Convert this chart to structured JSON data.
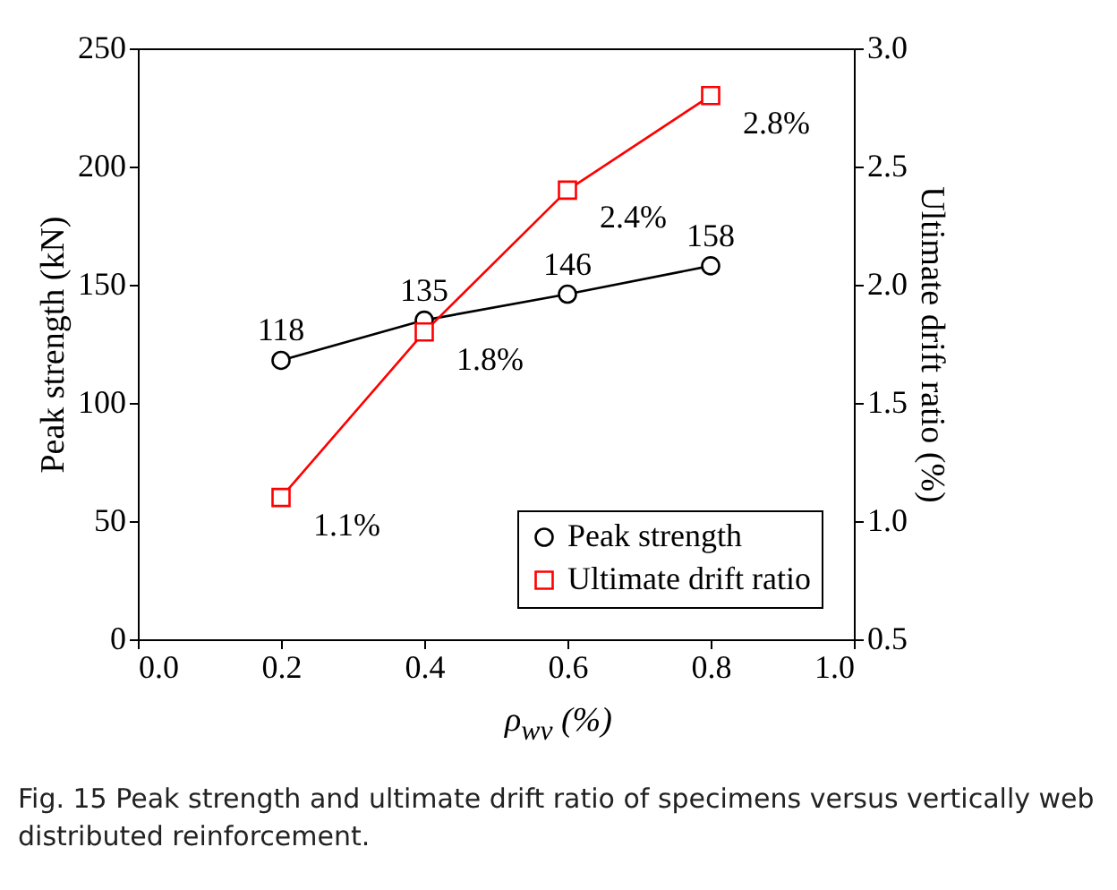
{
  "chart_data": {
    "type": "line",
    "xlabel": "ρ$_{wv}$ (%)",
    "ylabel": "Peak strength (kN)",
    "y2label": "Ultimate drift ratio (%)",
    "x": [
      0.2,
      0.4,
      0.6,
      0.8
    ],
    "series": [
      {
        "name": "Peak strength",
        "color": "#000000",
        "marker": "circle",
        "values": [
          118,
          135,
          146,
          158
        ],
        "value_labels": [
          "118",
          "135",
          "146",
          "158"
        ]
      },
      {
        "name": "Ultimate drift ratio",
        "color": "#ff0000",
        "marker": "square",
        "axis": "y2",
        "values": [
          1.1,
          1.8,
          2.4,
          2.8
        ],
        "value_labels": [
          "1.1%",
          "1.8%",
          "2.4%",
          "2.8%"
        ]
      }
    ],
    "xlim": [
      0,
      1
    ],
    "xticks": [
      {
        "value": 0,
        "label": "0.0"
      },
      0.2,
      0.4,
      0.6,
      0.8,
      {
        "value": 1,
        "label": "1.0"
      }
    ],
    "ylim": [
      0,
      250
    ],
    "yticks": [
      0,
      50,
      100,
      150,
      200,
      250
    ],
    "y2lim": [
      0.5,
      3
    ],
    "y2ticks": [
      0.5,
      {
        "value": 1,
        "label": "1.0"
      },
      1.5,
      {
        "value": 2,
        "label": "2.0"
      },
      2.5,
      {
        "value": 3,
        "label": "3.0"
      }
    ],
    "legend": "bottom right",
    "line_style": "solid",
    "annotations": [
      "Fig. 15 Peak strength and ultimate drift ratio of specimens versus vertically web distributed reinforcement."
    ]
  }
}
